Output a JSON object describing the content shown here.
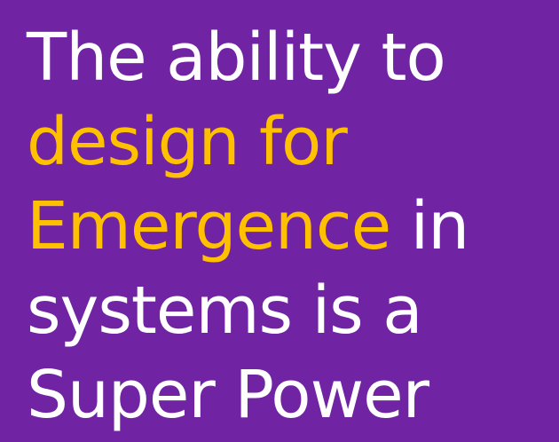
{
  "slide": {
    "background_color": "#7024a3",
    "text_color": "#ffffff",
    "accent_color": "#ffc000",
    "lines": [
      {
        "text": "The ability to"
      },
      {
        "accent": "design for"
      },
      {
        "accent": "Emergence",
        "text": " in"
      },
      {
        "text": "systems is a"
      },
      {
        "text": "Super Power"
      }
    ]
  }
}
